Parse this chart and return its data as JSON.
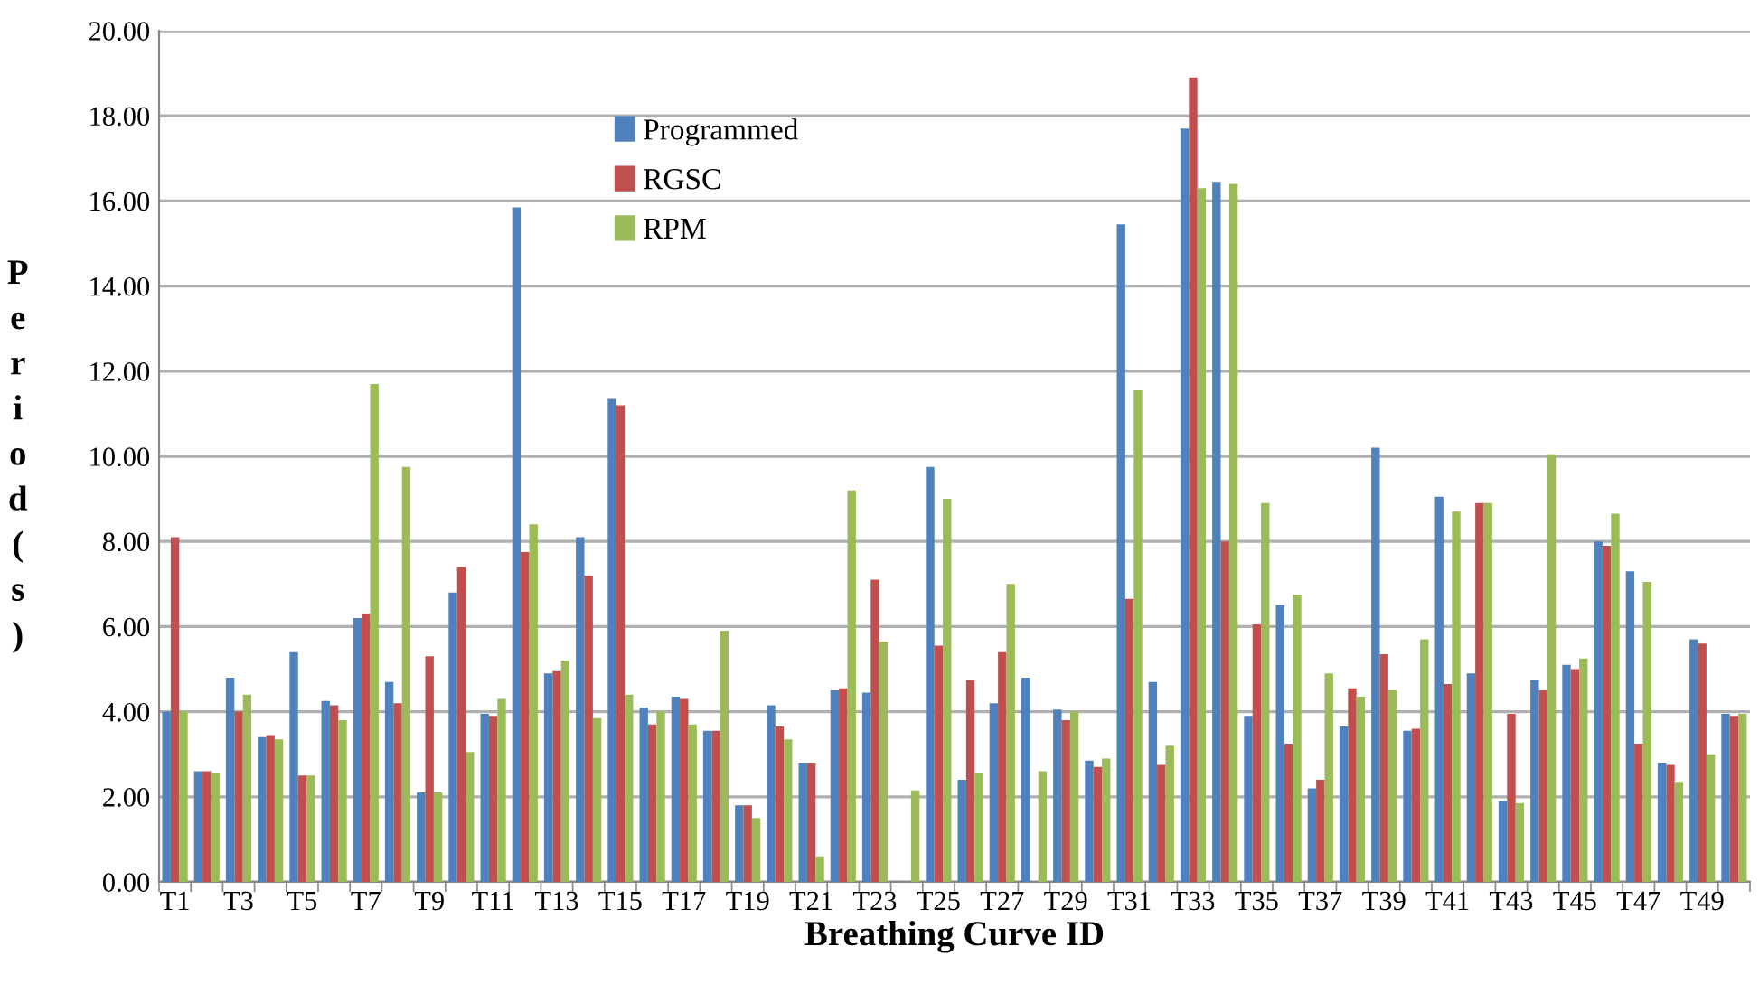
{
  "chart_data": {
    "type": "bar",
    "xlabel": "Breathing Curve ID",
    "ylabel": "Period (s)",
    "categories": [
      "T1",
      null,
      "T3",
      null,
      "T5",
      null,
      "T7",
      null,
      "T9",
      null,
      "T11",
      null,
      "T13",
      null,
      "T15",
      null,
      "T17",
      null,
      "T19",
      null,
      "T21",
      null,
      "T23",
      null,
      "T25",
      null,
      "T27",
      null,
      "T29",
      null,
      "T31",
      null,
      "T33",
      null,
      "T35",
      null,
      "T37",
      null,
      "T39",
      null,
      "T41",
      null,
      "T43",
      null,
      "T45",
      null,
      "T47",
      null,
      "T49",
      null
    ],
    "series": [
      {
        "name": "Programmed",
        "color": "#4f81bd",
        "values": [
          4.0,
          2.6,
          4.8,
          3.4,
          5.4,
          4.25,
          6.2,
          4.7,
          2.1,
          6.8,
          3.95,
          15.85,
          4.9,
          8.1,
          11.35,
          4.1,
          4.35,
          3.55,
          1.8,
          4.15,
          2.8,
          4.5,
          4.45,
          null,
          9.75,
          2.4,
          4.2,
          4.8,
          4.05,
          2.85,
          15.45,
          4.7,
          17.7,
          16.45,
          3.9,
          6.5,
          2.2,
          3.65,
          10.2,
          3.55,
          9.05,
          4.9,
          1.9,
          4.75,
          5.1,
          8.0,
          7.3,
          2.8,
          5.7,
          3.95
        ]
      },
      {
        "name": "RGSC",
        "color": "#c0504d",
        "values": [
          8.1,
          2.6,
          4.0,
          3.45,
          2.5,
          4.15,
          6.3,
          4.2,
          5.3,
          7.4,
          3.9,
          7.75,
          4.95,
          7.2,
          11.2,
          3.7,
          4.3,
          3.55,
          1.8,
          3.65,
          2.8,
          4.55,
          7.1,
          null,
          5.55,
          4.75,
          5.4,
          null,
          3.8,
          2.7,
          6.65,
          2.75,
          18.9,
          8.0,
          6.05,
          3.25,
          2.4,
          4.55,
          5.35,
          3.6,
          4.65,
          8.9,
          3.95,
          4.5,
          5.0,
          7.9,
          3.25,
          2.75,
          5.6,
          3.9
        ]
      },
      {
        "name": "RPM",
        "color": "#9bbb59",
        "values": [
          4.0,
          2.55,
          4.4,
          3.35,
          2.5,
          3.8,
          11.7,
          9.75,
          2.1,
          3.05,
          4.3,
          8.4,
          5.2,
          3.85,
          4.4,
          4.0,
          3.7,
          5.9,
          1.5,
          3.35,
          0.6,
          9.2,
          5.65,
          2.15,
          9.0,
          2.55,
          7.0,
          2.6,
          4.0,
          2.9,
          11.55,
          3.2,
          16.3,
          16.4,
          8.9,
          6.75,
          4.9,
          4.35,
          4.5,
          5.7,
          8.7,
          8.9,
          1.85,
          10.05,
          5.25,
          8.65,
          7.05,
          2.35,
          3.0,
          3.95
        ]
      }
    ],
    "ylim": [
      0,
      20
    ],
    "yticks": [
      {
        "value": 0,
        "label": "0.00"
      },
      {
        "value": 2,
        "label": "2.00"
      },
      {
        "value": 4,
        "label": "4.00"
      },
      {
        "value": 6,
        "label": "6.00"
      },
      {
        "value": 8,
        "label": "8.00"
      },
      {
        "value": 10,
        "label": "10.00"
      },
      {
        "value": 12,
        "label": "12.00"
      },
      {
        "value": 14,
        "label": "14.00"
      },
      {
        "value": 16,
        "label": "16.00"
      },
      {
        "value": 18,
        "label": "18.00"
      },
      {
        "value": 20,
        "label": "20.00"
      }
    ],
    "grid": "y",
    "legend": "top"
  }
}
